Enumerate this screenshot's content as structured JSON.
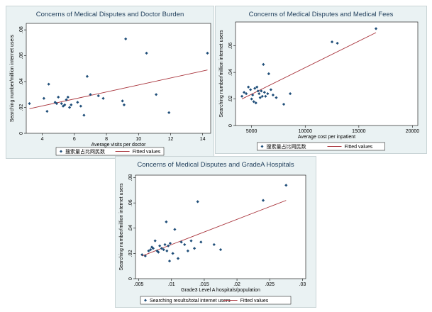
{
  "chart_data": [
    {
      "type": "scatter",
      "title": "Concerns of Medical Disputes and Doctor Burden",
      "xlabel": "Average visits per doctor",
      "ylabel": "Searching number/million internet users",
      "xlim": [
        3,
        14.5
      ],
      "ylim": [
        0,
        0.085
      ],
      "xticks": [
        4,
        6,
        8,
        10,
        12,
        14
      ],
      "xtick_labels": [
        "4",
        "6",
        "8",
        "10",
        "12",
        "14"
      ],
      "yticks": [
        0,
        0.02,
        0.04,
        0.06,
        0.08
      ],
      "ytick_labels": [
        "0",
        ".02",
        ".04",
        ".06",
        ".08"
      ],
      "series": [
        {
          "name": "搜索量占比网民数",
          "marker": "diamond",
          "x": [
            3.2,
            4.1,
            4.3,
            4.4,
            4.8,
            4.9,
            5.0,
            5.2,
            5.3,
            5.4,
            5.5,
            5.6,
            5.7,
            5.8,
            6.2,
            6.4,
            6.6,
            6.8,
            7.0,
            7.5,
            7.8,
            9.0,
            9.1,
            9.2,
            10.5,
            11.1,
            11.9,
            14.3
          ],
          "y": [
            0.023,
            0.027,
            0.017,
            0.038,
            0.024,
            0.023,
            0.028,
            0.023,
            0.021,
            0.022,
            0.026,
            0.028,
            0.02,
            0.022,
            0.024,
            0.021,
            0.014,
            0.044,
            0.03,
            0.029,
            0.027,
            0.025,
            0.022,
            0.073,
            0.062,
            0.03,
            0.016,
            0.062
          ]
        },
        {
          "name": "Fitted values",
          "type": "line",
          "x": [
            3.2,
            14.3
          ],
          "y": [
            0.019,
            0.049
          ]
        }
      ],
      "legend": "bottom",
      "grid": false
    },
    {
      "type": "scatter",
      "title": "Concerns of Medical Disputes and Medical Fees",
      "xlabel": "Average cost per inpatient",
      "ylabel": "Searching number/million internet users",
      "xlim": [
        3500,
        20500
      ],
      "ylim": [
        0,
        0.078
      ],
      "xticks": [
        5000,
        10000,
        15000,
        20000
      ],
      "xtick_labels": [
        "5000",
        "10000",
        "15000",
        "20000"
      ],
      "yticks": [
        0,
        0.02,
        0.04,
        0.06
      ],
      "ytick_labels": [
        "0",
        ".02",
        ".04",
        ".06"
      ],
      "series": [
        {
          "name": "搜索量占比网民数",
          "marker": "diamond",
          "x": [
            4100,
            4300,
            4500,
            4700,
            4900,
            5000,
            5100,
            5200,
            5300,
            5400,
            5500,
            5600,
            5700,
            5800,
            5900,
            6000,
            6100,
            6200,
            6300,
            6500,
            6600,
            6800,
            7000,
            7300,
            8000,
            8600,
            12500,
            13000,
            16600
          ],
          "y": [
            0.022,
            0.025,
            0.024,
            0.029,
            0.027,
            0.02,
            0.023,
            0.018,
            0.028,
            0.017,
            0.029,
            0.026,
            0.024,
            0.021,
            0.026,
            0.022,
            0.046,
            0.025,
            0.022,
            0.024,
            0.039,
            0.027,
            0.023,
            0.021,
            0.016,
            0.024,
            0.063,
            0.062,
            0.073
          ]
        },
        {
          "name": "Fitted values",
          "type": "line",
          "x": [
            4100,
            16600
          ],
          "y": [
            0.02,
            0.07
          ]
        }
      ],
      "legend": "bottom",
      "grid": false
    },
    {
      "type": "scatter",
      "title": "Concerns of Medical Disputes and GradeA Hospitals",
      "xlabel": "Grade3 Level A hospitals/population",
      "ylabel": "Searching number/million internet users",
      "xlim": [
        0.0045,
        0.0305
      ],
      "ylim": [
        0,
        0.082
      ],
      "xticks": [
        0.005,
        0.01,
        0.015,
        0.02,
        0.025,
        0.03
      ],
      "xtick_labels": [
        ".005",
        ".01",
        ".015",
        ".02",
        ".025",
        ".03"
      ],
      "yticks": [
        0,
        0.02,
        0.04,
        0.06,
        0.08
      ],
      "ytick_labels": [
        "0",
        ".02",
        ".04",
        ".06",
        ".08"
      ],
      "series": [
        {
          "name": "Searching results/total internet users",
          "marker": "diamond",
          "x": [
            0.0055,
            0.006,
            0.0065,
            0.0068,
            0.007,
            0.0072,
            0.0075,
            0.0078,
            0.008,
            0.0082,
            0.0085,
            0.0088,
            0.009,
            0.0092,
            0.0093,
            0.0095,
            0.0097,
            0.0098,
            0.0102,
            0.0105,
            0.011,
            0.0115,
            0.012,
            0.0125,
            0.013,
            0.0135,
            0.014,
            0.0145,
            0.0165,
            0.0175,
            0.024,
            0.0275
          ],
          "y": [
            0.019,
            0.018,
            0.022,
            0.023,
            0.025,
            0.024,
            0.03,
            0.022,
            0.021,
            0.026,
            0.024,
            0.023,
            0.027,
            0.045,
            0.022,
            0.026,
            0.014,
            0.028,
            0.02,
            0.039,
            0.016,
            0.029,
            0.027,
            0.022,
            0.03,
            0.024,
            0.061,
            0.029,
            0.027,
            0.023,
            0.062,
            0.074
          ]
        },
        {
          "name": "Fitted values",
          "type": "line",
          "x": [
            0.0055,
            0.0275
          ],
          "y": [
            0.018,
            0.062
          ]
        }
      ],
      "legend": "bottom",
      "grid": false
    }
  ],
  "colors": {
    "background": "#eaf2f3",
    "plot_region": "#ffffff",
    "title": "#1e3d5a",
    "marker": "#1f4e79",
    "fit_line": "#a8323a"
  }
}
